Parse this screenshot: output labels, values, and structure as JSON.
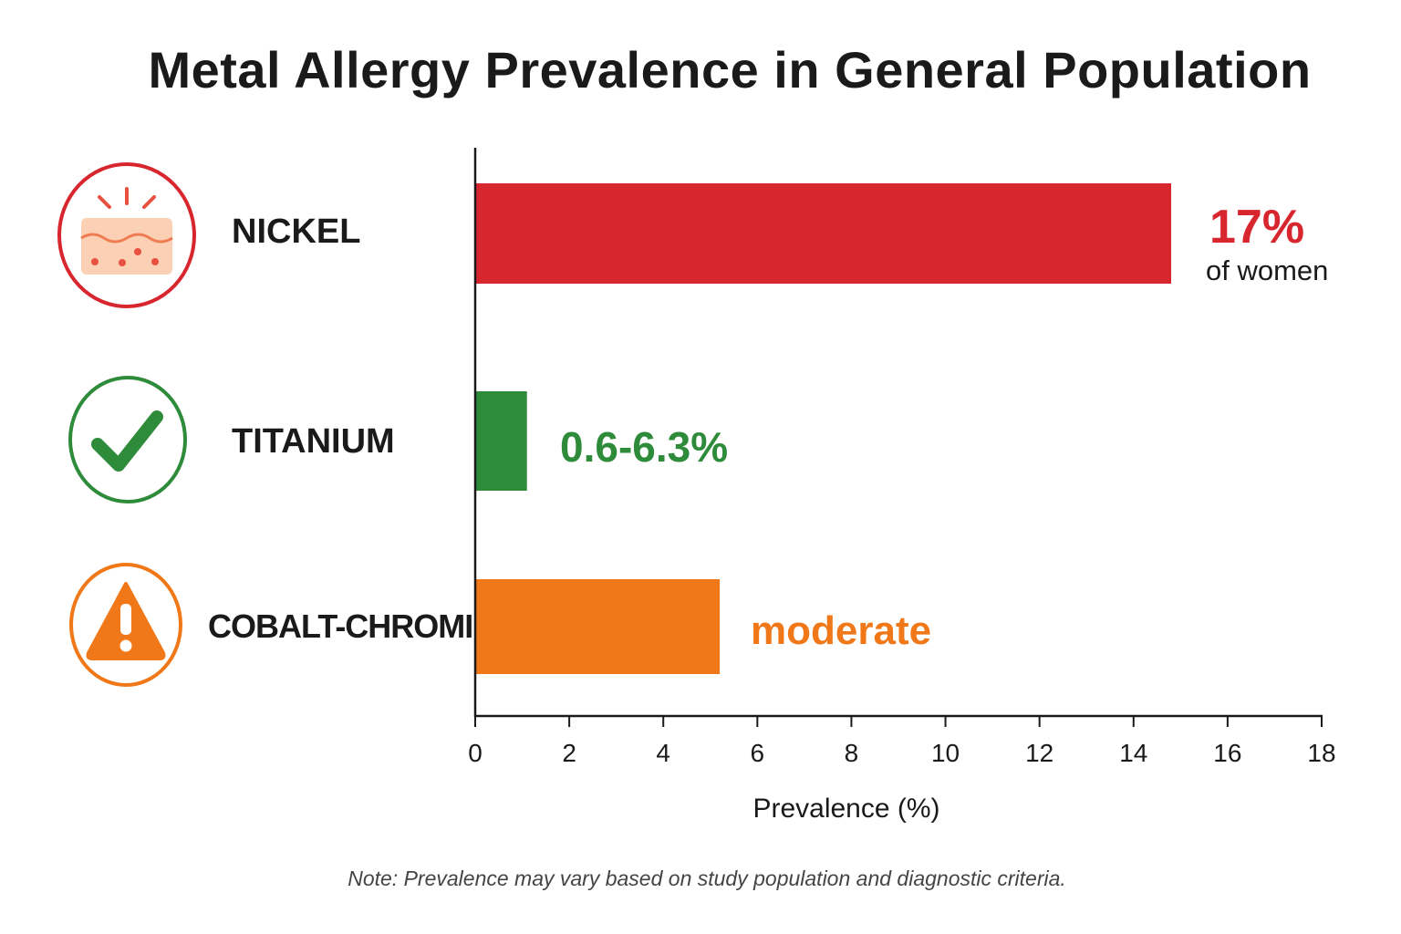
{
  "title": "Metal Allergy Prevalence in General Population",
  "note": "Note: Prevalence may vary based on study population and diagnostic criteria.",
  "colors": {
    "nickel": "#d7262e",
    "titanium": "#2e8b3a",
    "cobalt": "#f07818"
  },
  "chart_data": {
    "type": "bar",
    "orientation": "horizontal",
    "categories": [
      "NICKEL",
      "TITANIUM",
      "COBALT-CHROMIUM"
    ],
    "values": [
      14.8,
      1.1,
      5.2
    ],
    "value_labels": [
      "17%",
      "0.6-6.3%",
      "moderate"
    ],
    "value_sublabels": [
      "of women",
      "",
      ""
    ],
    "icons": [
      "irritated-skin-icon",
      "checkmark-icon",
      "warning-icon"
    ],
    "xlabel": "Prevalence (%)",
    "xlim": [
      0,
      18
    ],
    "xticks": [
      0,
      2,
      4,
      6,
      8,
      10,
      12,
      14,
      16,
      18
    ],
    "grid": false,
    "legend": "none"
  }
}
